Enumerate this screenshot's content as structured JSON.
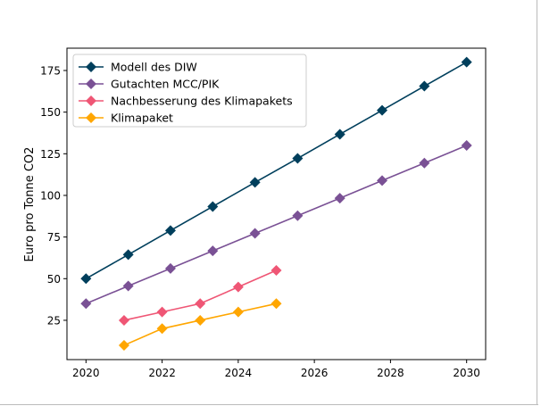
{
  "chart_data": {
    "type": "line",
    "title": "",
    "xlabel": "",
    "ylabel": "Euro pro Tonne CO2",
    "xlim": [
      2019.5,
      2030.5
    ],
    "ylim": [
      1.4,
      188.4
    ],
    "xticks": [
      2020,
      2022,
      2024,
      2026,
      2028,
      2030
    ],
    "yticks": [
      25,
      50,
      75,
      100,
      125,
      150,
      175
    ],
    "grid": false,
    "legend_position": "top-left",
    "marker": "diamond",
    "series": [
      {
        "name": "Modell des DIW",
        "color": "#003f5c",
        "x": [
          2020,
          2021.11,
          2022.22,
          2023.33,
          2024.44,
          2025.56,
          2026.67,
          2027.78,
          2028.89,
          2030
        ],
        "y": [
          50,
          64.4,
          78.9,
          93.3,
          107.8,
          122.2,
          136.7,
          151.1,
          165.6,
          180
        ]
      },
      {
        "name": "Gutachten MCC/PIK",
        "color": "#7a5195",
        "x": [
          2020,
          2021.11,
          2022.22,
          2023.33,
          2024.44,
          2025.56,
          2026.67,
          2027.78,
          2028.89,
          2030
        ],
        "y": [
          35,
          45.6,
          56.1,
          66.7,
          77.2,
          87.8,
          98.3,
          108.9,
          119.4,
          130
        ]
      },
      {
        "name": "Nachbesserung des Klimapakets",
        "color": "#ef5675",
        "x": [
          2021,
          2022,
          2023,
          2024,
          2025
        ],
        "y": [
          25,
          30,
          35,
          45,
          55
        ]
      },
      {
        "name": "Klimapaket",
        "color": "#ffa600",
        "x": [
          2021,
          2022,
          2023,
          2024,
          2025
        ],
        "y": [
          10,
          20,
          25,
          30,
          35
        ]
      }
    ]
  }
}
